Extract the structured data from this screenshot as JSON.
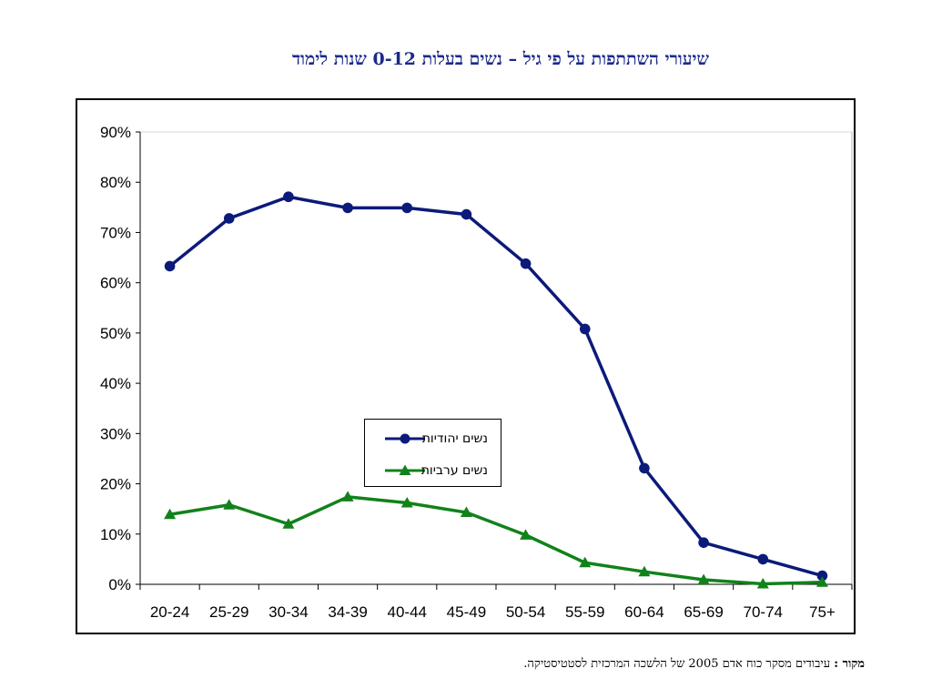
{
  "chart_data": {
    "type": "line",
    "title": "שיעורי השתתפות על פי גיל – נשים בעלות 0-12 שנות לימוד",
    "categories": [
      "20-24",
      "25-29",
      "30-34",
      "34-39",
      "40-44",
      "45-49",
      "50-54",
      "55-59",
      "60-64",
      "65-69",
      "70-74",
      "75+"
    ],
    "yticks": [
      "0%",
      "10%",
      "20%",
      "30%",
      "40%",
      "50%",
      "60%",
      "70%",
      "80%",
      "90%"
    ],
    "ylim": [
      0,
      90
    ],
    "grid": false,
    "legend_position": "center-left",
    "series": [
      {
        "name": "נשים יהודיות",
        "color": "#0c1a7a",
        "marker": "circle",
        "values": [
          63.3,
          72.8,
          77.1,
          74.9,
          74.9,
          73.6,
          63.8,
          50.8,
          23.1,
          8.3,
          5.0,
          1.7
        ]
      },
      {
        "name": "נשים ערביות",
        "color": "#11821a",
        "marker": "triangle",
        "values": [
          13.9,
          15.8,
          12.0,
          17.4,
          16.2,
          14.3,
          9.8,
          4.3,
          2.5,
          0.9,
          0.1,
          0.4
        ]
      }
    ]
  },
  "source": {
    "label": "מקור :",
    "text": "עיבודים מסקר כוח אדם 2005 של הלשכה המרכזית לסטטיסטיקה."
  }
}
